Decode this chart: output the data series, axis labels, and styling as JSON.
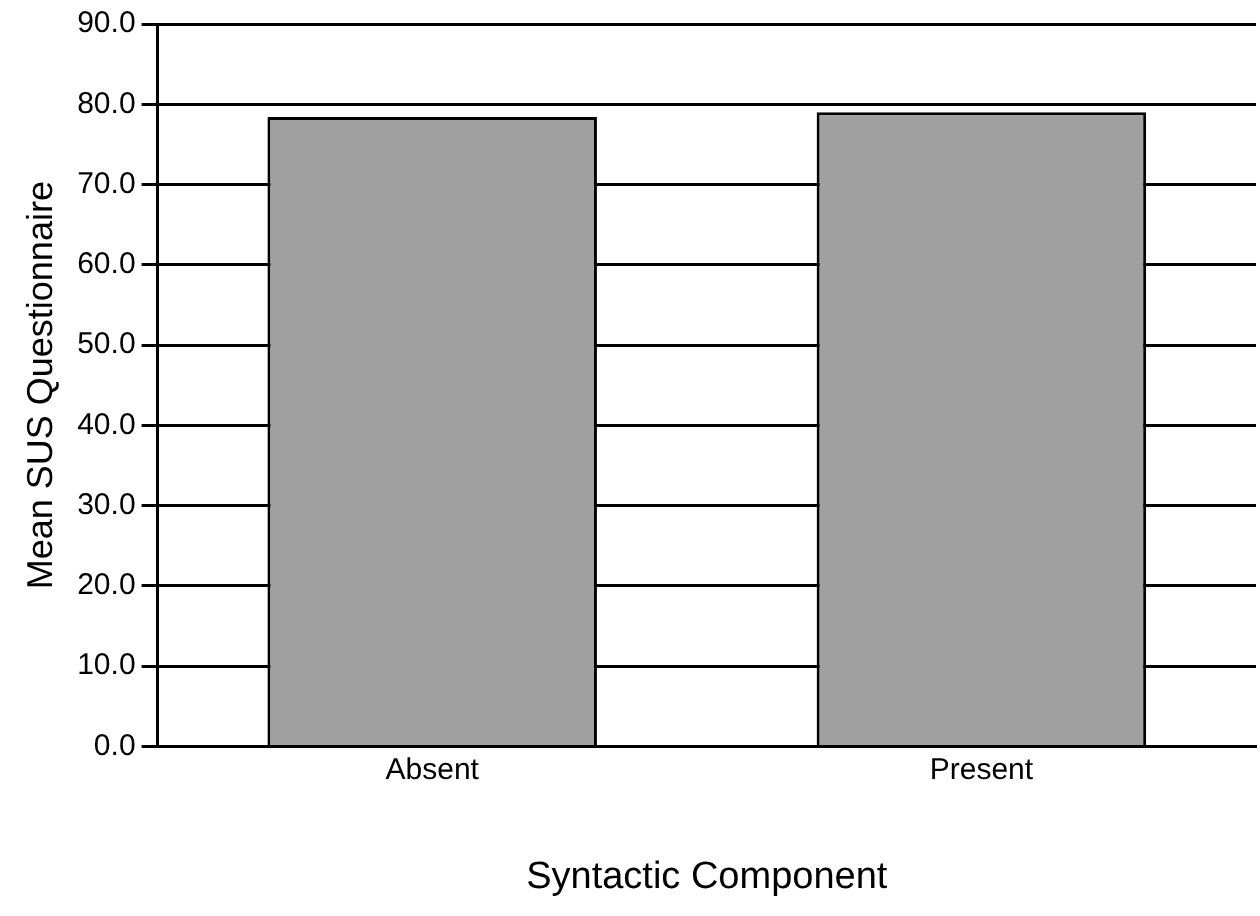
{
  "chart_data": {
    "type": "bar",
    "xlabel": "Syntactic Component",
    "ylabel": "Mean SUS Questionnaire",
    "categories": [
      "Absent",
      "Present"
    ],
    "values": [
      78.4,
      79.0
    ],
    "color": "#a0a0a0",
    "ylim": [
      0,
      90
    ],
    "yticks": [
      {
        "value": 0,
        "label": "0.0"
      },
      {
        "value": 10,
        "label": "10.0"
      },
      {
        "value": 20,
        "label": "20.0"
      },
      {
        "value": 30,
        "label": "30.0"
      },
      {
        "value": 40,
        "label": "40.0"
      },
      {
        "value": 50,
        "label": "50.0"
      },
      {
        "value": 60,
        "label": "60.0"
      },
      {
        "value": 70,
        "label": "70.0"
      },
      {
        "value": 80,
        "label": "80.0"
      },
      {
        "value": 90,
        "label": "90.0"
      }
    ],
    "grid": "y",
    "legend": false
  }
}
